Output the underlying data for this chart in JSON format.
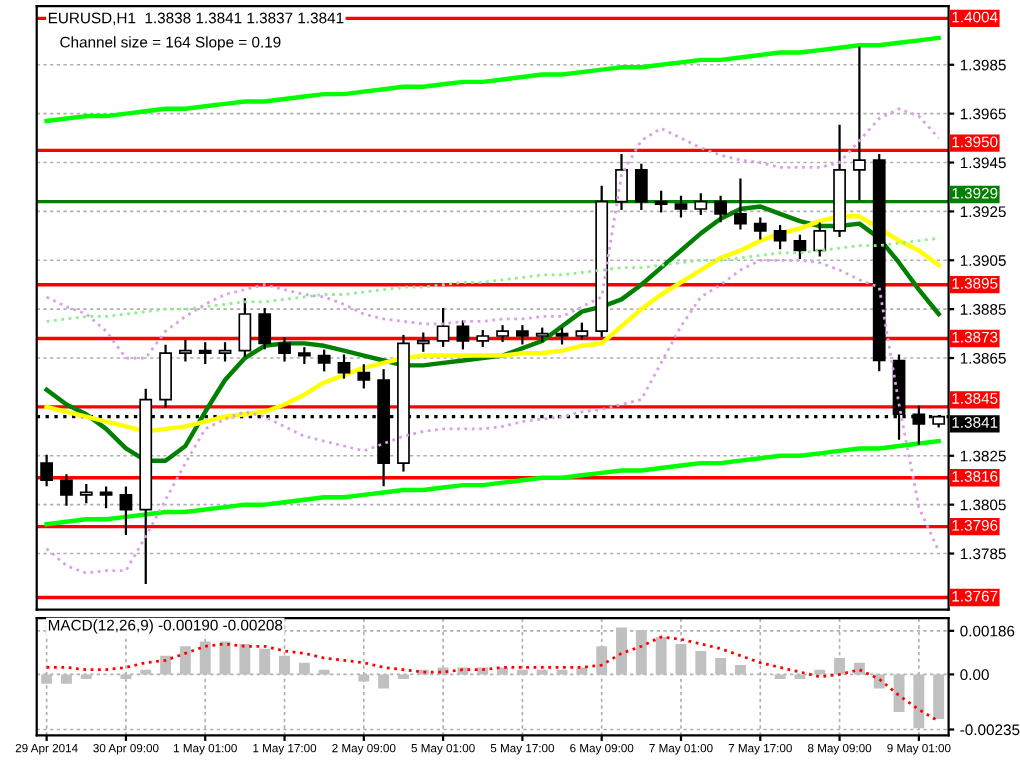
{
  "chart_data": [
    {
      "type": "candlestick",
      "title": "EURUSD,H1  1.3838 1.3841 1.3837 1.3841",
      "annotations": [
        "Channel size = 164 Slope = 0.19"
      ],
      "color": "#000000",
      "categories": [
        null,
        null,
        null,
        null,
        null,
        null,
        null,
        null,
        null,
        null,
        null,
        null,
        null,
        null,
        null,
        null,
        null,
        null,
        null,
        null,
        null,
        null,
        null,
        null,
        null,
        null,
        null,
        null,
        null,
        null,
        null,
        null,
        null,
        null,
        null,
        null,
        null,
        null,
        null,
        null,
        null,
        null,
        null,
        null,
        null,
        null
      ],
      "ohlc": [
        [
          1.3822,
          1.3825,
          1.3813,
          1.3815
        ],
        [
          1.3815,
          1.3817,
          1.3805,
          1.3809
        ],
        [
          1.3809,
          1.3813,
          1.3806,
          1.381
        ],
        [
          1.381,
          1.3812,
          1.3804,
          1.3809
        ],
        [
          1.3809,
          1.3812,
          1.3793,
          1.3803
        ],
        [
          1.3803,
          1.3852,
          1.3773,
          1.3848
        ],
        [
          1.3848,
          1.387,
          1.3845,
          1.3867
        ],
        [
          1.3867,
          1.3872,
          1.3864,
          1.3868
        ],
        [
          1.3868,
          1.3871,
          1.3863,
          1.3867
        ],
        [
          1.3867,
          1.3871,
          1.3864,
          1.3868
        ],
        [
          1.3868,
          1.3889,
          1.3866,
          1.3883
        ],
        [
          1.3883,
          1.3885,
          1.3869,
          1.3871
        ],
        [
          1.3871,
          1.3873,
          1.3864,
          1.3867
        ],
        [
          1.3867,
          1.3869,
          1.3863,
          1.3866
        ],
        [
          1.3866,
          1.3868,
          1.386,
          1.3863
        ],
        [
          1.3863,
          1.3866,
          1.3857,
          1.3859
        ],
        [
          1.3859,
          1.3862,
          1.3853,
          1.3856
        ],
        [
          1.3856,
          1.386,
          1.3813,
          1.3822
        ],
        [
          1.3822,
          1.3874,
          1.3819,
          1.3871
        ],
        [
          1.3871,
          1.3875,
          1.3868,
          1.3872
        ],
        [
          1.3872,
          1.3885,
          1.387,
          1.3878
        ],
        [
          1.3878,
          1.388,
          1.3869,
          1.3872
        ],
        [
          1.3872,
          1.3876,
          1.387,
          1.3874
        ],
        [
          1.3874,
          1.3878,
          1.3872,
          1.3876
        ],
        [
          1.3876,
          1.3878,
          1.3871,
          1.3874
        ],
        [
          1.3874,
          1.3877,
          1.3872,
          1.3875
        ],
        [
          1.3875,
          1.3877,
          1.3871,
          1.3874
        ],
        [
          1.3874,
          1.3879,
          1.3873,
          1.3876
        ],
        [
          1.3876,
          1.3935,
          1.3874,
          1.3929
        ],
        [
          1.3929,
          1.3948,
          1.3926,
          1.3942
        ],
        [
          1.3942,
          1.3944,
          1.3926,
          1.3929
        ],
        [
          1.3929,
          1.3933,
          1.3925,
          1.3928
        ],
        [
          1.3928,
          1.3931,
          1.3923,
          1.3926
        ],
        [
          1.3926,
          1.3932,
          1.3924,
          1.3929
        ],
        [
          1.3929,
          1.3931,
          1.3921,
          1.3924
        ],
        [
          1.3924,
          1.3938,
          1.3918,
          1.392
        ],
        [
          1.392,
          1.3922,
          1.3914,
          1.3917
        ],
        [
          1.3917,
          1.3919,
          1.391,
          1.3913
        ],
        [
          1.3913,
          1.3915,
          1.3906,
          1.3909
        ],
        [
          1.3909,
          1.392,
          1.3907,
          1.3917
        ],
        [
          1.3917,
          1.396,
          1.3915,
          1.3942
        ],
        [
          1.3942,
          1.3992,
          1.393,
          1.3946
        ],
        [
          1.3946,
          1.3948,
          1.386,
          1.3864
        ],
        [
          1.3864,
          1.3866,
          1.3832,
          1.3842
        ],
        [
          1.3842,
          1.3845,
          1.383,
          1.3838
        ],
        [
          1.3838,
          1.3841,
          1.3837,
          1.3841
        ]
      ],
      "series": [
        {
          "type": "line",
          "color": "#008000",
          "values": [
            1.3852,
            1.3846,
            1.3842,
            1.3836,
            1.3828,
            1.3823,
            1.3823,
            1.3829,
            1.3843,
            1.3856,
            1.3865,
            1.387,
            1.3871,
            1.3871,
            1.387,
            1.3868,
            1.3866,
            1.3864,
            1.3862,
            1.3862,
            1.3863,
            1.3864,
            1.3865,
            1.3866,
            1.3869,
            1.3872,
            1.3878,
            1.3884,
            1.3886,
            1.3889,
            1.3895,
            1.3902,
            1.3909,
            1.3916,
            1.3922,
            1.3926,
            1.3927,
            1.3924,
            1.3921,
            1.3919,
            1.3919,
            1.392,
            1.3914,
            1.3904,
            1.3893,
            1.3883
          ]
        },
        {
          "type": "line",
          "color": "#ffff00",
          "values": [
            1.3845,
            1.3843,
            1.3841,
            1.3839,
            1.3837,
            1.3835,
            1.3836,
            1.3837,
            1.3839,
            1.3841,
            1.3842,
            1.3843,
            1.3846,
            1.385,
            1.3855,
            1.3858,
            1.3861,
            1.3863,
            1.3865,
            1.3866,
            1.3866,
            1.3866,
            1.3866,
            1.3866,
            1.3867,
            1.3867,
            1.3868,
            1.387,
            1.3871,
            1.3878,
            1.3885,
            1.3891,
            1.3896,
            1.3901,
            1.3906,
            1.3909,
            1.3913,
            1.3916,
            1.3918,
            1.3921,
            1.3923,
            1.3923,
            1.3918,
            1.3913,
            1.3909,
            1.3903
          ]
        },
        {
          "type": "line",
          "color": "#00ff00",
          "values": [
            1.3962,
            1.3963,
            1.3964,
            1.3964,
            1.3965,
            1.3966,
            1.3967,
            1.3967,
            1.3968,
            1.3969,
            1.397,
            1.397,
            1.3971,
            1.3972,
            1.3973,
            1.3973,
            1.3974,
            1.3975,
            1.3976,
            1.3976,
            1.3977,
            1.3978,
            1.3978,
            1.3979,
            1.398,
            1.3981,
            1.3981,
            1.3982,
            1.3983,
            1.3984,
            1.3984,
            1.3985,
            1.3986,
            1.3987,
            1.3987,
            1.3988,
            1.3989,
            1.399,
            1.399,
            1.3991,
            1.3992,
            1.3993,
            1.3993,
            1.3994,
            1.3995,
            1.3996
          ]
        },
        {
          "type": "line",
          "color": "#00ff00",
          "values": [
            1.3797,
            1.3798,
            1.3799,
            1.3799,
            1.38,
            1.3801,
            1.3802,
            1.3802,
            1.3803,
            1.3804,
            1.3805,
            1.3805,
            1.3806,
            1.3807,
            1.3808,
            1.3808,
            1.3809,
            1.381,
            1.3811,
            1.3811,
            1.3812,
            1.3813,
            1.3813,
            1.3814,
            1.3815,
            1.3816,
            1.3816,
            1.3817,
            1.3818,
            1.3819,
            1.3819,
            1.382,
            1.3821,
            1.3822,
            1.3822,
            1.3823,
            1.3824,
            1.3825,
            1.3825,
            1.3826,
            1.3827,
            1.3828,
            1.3828,
            1.3829,
            1.383,
            1.3831
          ]
        },
        {
          "type": "line",
          "color": "#90ee90",
          "line_style": "dotted",
          "values": [
            1.388,
            1.3881,
            1.3882,
            1.3882,
            1.3883,
            1.3884,
            1.3885,
            1.3885,
            1.3886,
            1.3887,
            1.3888,
            1.3888,
            1.3889,
            1.389,
            1.3891,
            1.3891,
            1.3892,
            1.3893,
            1.3894,
            1.3894,
            1.3895,
            1.3896,
            1.3896,
            1.3897,
            1.3898,
            1.3899,
            1.3899,
            1.39,
            1.3901,
            1.3902,
            1.3902,
            1.3903,
            1.3904,
            1.3905,
            1.3905,
            1.3906,
            1.3907,
            1.3908,
            1.3908,
            1.3909,
            1.391,
            1.3911,
            1.3911,
            1.3912,
            1.3913,
            1.3914
          ]
        },
        {
          "type": "line",
          "color": "#d9a0e8",
          "line_style": "dotted",
          "values": [
            1.389,
            1.3886,
            1.3883,
            1.3876,
            1.3865,
            1.3865,
            1.3876,
            1.3882,
            1.3887,
            1.3891,
            1.3893,
            1.3895,
            1.3893,
            1.3891,
            1.389,
            1.3887,
            1.3883,
            1.3881,
            1.388,
            1.3879,
            1.3879,
            1.388,
            1.388,
            1.3881,
            1.3881,
            1.3882,
            1.3882,
            1.3886,
            1.389,
            1.394,
            1.3954,
            1.3959,
            1.3955,
            1.3951,
            1.3948,
            1.3946,
            1.3945,
            1.3943,
            1.3943,
            1.3943,
            1.3945,
            1.3954,
            1.3963,
            1.3967,
            1.3964,
            1.3955
          ]
        },
        {
          "type": "line",
          "color": "#d9a0e8",
          "line_style": "dotted",
          "values": [
            1.3787,
            1.378,
            1.3777,
            1.3778,
            1.3778,
            1.3792,
            1.3807,
            1.3822,
            1.3836,
            1.384,
            1.3843,
            1.3841,
            1.3837,
            1.3833,
            1.3831,
            1.3829,
            1.3827,
            1.383,
            1.3833,
            1.3835,
            1.3836,
            1.3836,
            1.3836,
            1.3837,
            1.3839,
            1.384,
            1.3841,
            1.3843,
            1.3844,
            1.3846,
            1.3848,
            1.3863,
            1.3878,
            1.389,
            1.3895,
            1.3901,
            1.3905,
            1.3905,
            1.3905,
            1.3904,
            1.3901,
            1.3897,
            1.3894,
            1.3846,
            1.3804,
            1.3786
          ]
        }
      ],
      "ref_lines": [
        {
          "axis": "y",
          "value": 1.4004,
          "label": "1.4004",
          "color": "#ff0000"
        },
        {
          "axis": "y",
          "value": 1.395,
          "label": "1.3950",
          "color": "#ff0000"
        },
        {
          "axis": "y",
          "value": 1.3929,
          "label": "1.3929",
          "color": "#008000"
        },
        {
          "axis": "y",
          "value": 1.3895,
          "label": "1.3895",
          "color": "#ff0000"
        },
        {
          "axis": "y",
          "value": 1.3873,
          "label": "1.3873",
          "color": "#ff0000"
        },
        {
          "axis": "y",
          "value": 1.3845,
          "label": "1.3845",
          "color": "#ff0000"
        },
        {
          "axis": "y",
          "value": 1.3841,
          "label": "1.3841",
          "color": "#000000",
          "line_style": "dotted"
        },
        {
          "axis": "y",
          "value": 1.3816,
          "label": "1.3816",
          "color": "#ff0000"
        },
        {
          "axis": "y",
          "value": 1.3796,
          "label": "1.3796",
          "color": "#ff0000"
        },
        {
          "axis": "y",
          "value": 1.3767,
          "label": "1.3767",
          "color": "#ff0000"
        }
      ],
      "ylim": [
        1.3762,
        1.4009
      ],
      "yticks": [
        1.3785,
        1.3805,
        1.3825,
        1.3865,
        1.3885,
        1.3905,
        1.3925,
        1.3945,
        1.3965,
        1.3985
      ],
      "tick_labels": "y",
      "grid": true,
      "legend": false
    },
    {
      "type": "bar",
      "title": "MACD(12,26,9) -0.00190 -0.00208",
      "categories": [
        "29 Apr 2014",
        null,
        null,
        null,
        "30 Apr 09:00",
        null,
        null,
        null,
        "1 May 01:00",
        null,
        null,
        null,
        "1 May 17:00",
        null,
        null,
        null,
        "2 May 09:00",
        null,
        null,
        null,
        "5 May 01:00",
        null,
        null,
        null,
        "5 May 17:00",
        null,
        null,
        null,
        "6 May 09:00",
        null,
        null,
        null,
        "7 May 01:00",
        null,
        null,
        null,
        "7 May 17:00",
        null,
        null,
        null,
        "8 May 09:00",
        null,
        null,
        null,
        "9 May 01:00",
        null
      ],
      "series": [
        {
          "type": "bar",
          "color": "#c0c0c0",
          "values": [
            -0.0004,
            -0.0004,
            -0.0002,
            null,
            -0.0002,
            0.0002,
            0.0008,
            0.0012,
            0.0014,
            0.0014,
            0.0013,
            0.0011,
            0.0008,
            0.0005,
            0.0002,
            null,
            -0.0003,
            -0.0006,
            -0.0002,
            0.0002,
            0.0003,
            0.0003,
            0.0003,
            0.0003,
            0.0002,
            0.0002,
            0.0002,
            0.0003,
            0.0012,
            0.002,
            0.0019,
            0.0016,
            0.0013,
            0.001,
            0.0007,
            0.0004,
            null,
            -0.0002,
            -0.0002,
            0.0002,
            0.0007,
            0.0005,
            -0.0006,
            -0.0016,
            -0.0023,
            -0.0019
          ]
        },
        {
          "type": "line",
          "color": "#ff0000",
          "line_style": "dotted",
          "values": [
            0.0003,
            0.0003,
            0.0002,
            0.0002,
            0.0003,
            0.0005,
            0.0006,
            0.0009,
            0.0012,
            0.0013,
            0.0012,
            0.0012,
            0.001,
            0.0009,
            0.0007,
            0.0006,
            0.0005,
            0.0003,
            0.0002,
            0.0001,
            0.0001,
            0.0002,
            0.0002,
            0.0003,
            0.0003,
            0.0003,
            0.0003,
            0.0003,
            0.0004,
            0.0009,
            0.0012,
            0.0016,
            0.0015,
            0.0013,
            0.0011,
            0.0008,
            0.0005,
            0.0003,
            0.0001,
            -0.0001,
            0.0,
            0.0002,
            -0.0002,
            -0.0009,
            -0.0015,
            -0.002
          ]
        }
      ],
      "ylim": [
        -0.0026,
        0.0024
      ],
      "yticks": [
        {
          "value": -0.00235,
          "label": "-0.00235"
        },
        {
          "value": 0,
          "label": "0.00"
        },
        {
          "value": 0.00186,
          "label": "0.00186"
        }
      ],
      "grid": true,
      "legend": false
    }
  ]
}
